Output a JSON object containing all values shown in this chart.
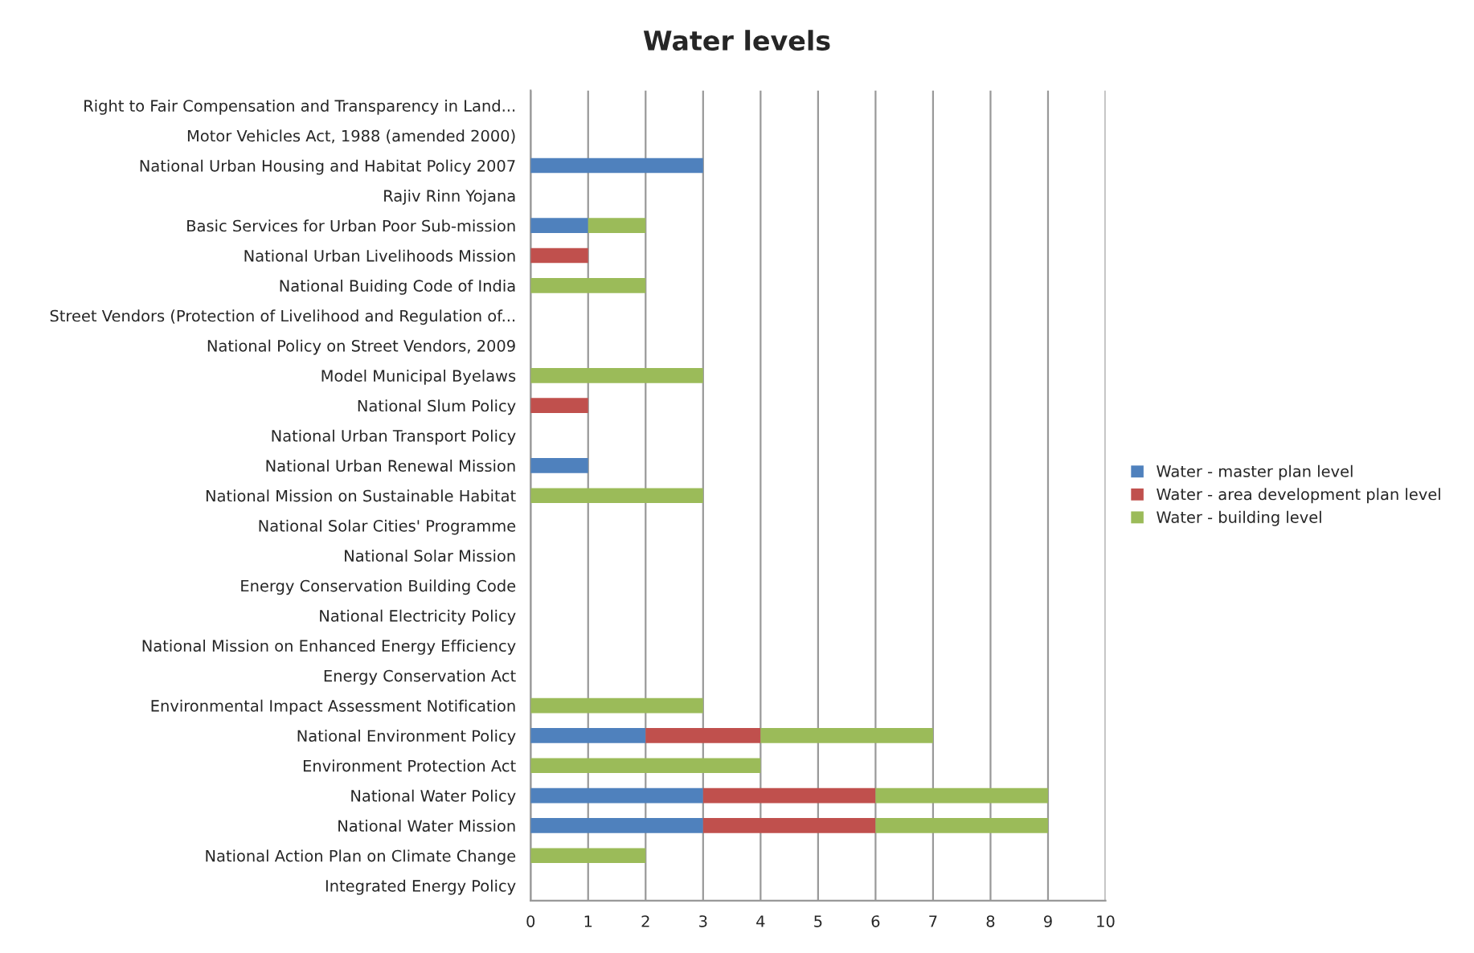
{
  "chart_data": {
    "type": "bar",
    "orientation": "horizontal",
    "stacked": true,
    "title": "Water levels",
    "categories": [
      "Right to Fair Compensation and Transparency in Land...",
      "Motor Vehicles Act, 1988 (amended 2000)",
      "National Urban Housing and Habitat Policy 2007",
      "Rajiv Rinn Yojana",
      "Basic Services for Urban Poor Sub-mission",
      "National Urban Livelihoods Mission",
      "National Buiding Code of India",
      "Street Vendors (Protection of Livelihood and Regulation of...",
      "National Policy on Street Vendors, 2009",
      "Model Municipal Byelaws",
      "National Slum Policy",
      "National Urban Transport Policy",
      "National Urban Renewal Mission",
      "National Mission on Sustainable Habitat",
      "National Solar Cities' Programme",
      "National Solar Mission",
      "Energy Conservation Building Code",
      "National Electricity Policy",
      "National Mission on Enhanced Energy Efficiency",
      "Energy Conservation Act",
      "Environmental Impact Assessment Notification",
      "National Environment Policy",
      "Environment Protection Act",
      "National Water Policy",
      "National Water Mission",
      "National Action Plan on Climate Change",
      "Integrated Energy Policy"
    ],
    "series": [
      {
        "name": "Water - master plan level",
        "color": "#4f81bd",
        "values": [
          0,
          0,
          3,
          0,
          1,
          0,
          0,
          0,
          0,
          0,
          0,
          0,
          1,
          0,
          0,
          0,
          0,
          0,
          0,
          0,
          0,
          2,
          0,
          3,
          3,
          0,
          0
        ]
      },
      {
        "name": "Water - area development plan level",
        "color": "#c0504d",
        "values": [
          0,
          0,
          0,
          0,
          0,
          1,
          0,
          0,
          0,
          0,
          1,
          0,
          0,
          0,
          0,
          0,
          0,
          0,
          0,
          0,
          0,
          2,
          0,
          3,
          3,
          0,
          0
        ]
      },
      {
        "name": "Water - building level",
        "color": "#9bbb59",
        "values": [
          0,
          0,
          0,
          0,
          1,
          0,
          2,
          0,
          0,
          3,
          0,
          0,
          0,
          3,
          0,
          0,
          0,
          0,
          0,
          0,
          3,
          3,
          4,
          3,
          3,
          2,
          0
        ]
      }
    ],
    "xlim": [
      0,
      10
    ],
    "xticks": [
      0,
      1,
      2,
      3,
      4,
      5,
      6,
      7,
      8,
      9,
      10
    ],
    "grid": "x",
    "legend": "right"
  }
}
